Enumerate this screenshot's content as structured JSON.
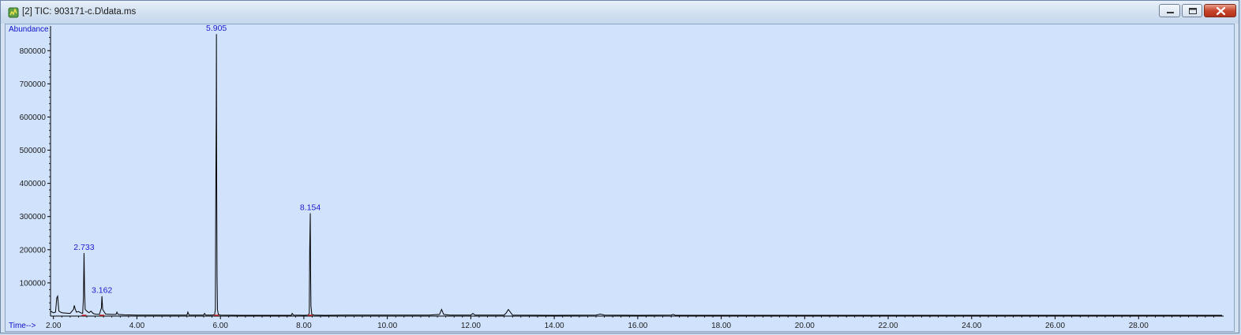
{
  "window": {
    "title": "[2] TIC: 903171-c.D\\data.ms",
    "icon": "chromatogram-app-icon",
    "controls": [
      "minimize-icon",
      "maximize-icon",
      "close-icon"
    ]
  },
  "chart_data": {
    "type": "line",
    "title": "",
    "xlabel": "Time-->",
    "ylabel": "Abundance",
    "xlim": [
      1.93,
      30.0
    ],
    "ylim": [
      0,
      860000
    ],
    "x_ticks": [
      2.0,
      4.0,
      6.0,
      8.0,
      10.0,
      12.0,
      14.0,
      16.0,
      18.0,
      20.0,
      22.0,
      24.0,
      26.0,
      28.0
    ],
    "x_tick_labels": [
      "2.00",
      "4.00",
      "6.00",
      "8.00",
      "10.00",
      "12.00",
      "14.00",
      "16.00",
      "18.00",
      "20.00",
      "22.00",
      "24.00",
      "26.00",
      "28.00"
    ],
    "y_ticks": [
      100000,
      200000,
      300000,
      400000,
      500000,
      600000,
      700000,
      800000
    ],
    "y_tick_labels": [
      "100000",
      "200000",
      "300000",
      "400000",
      "500000",
      "600000",
      "700000",
      "800000"
    ],
    "grid": false,
    "line_color": "#000000",
    "label_color": "#1a1ad0",
    "peak_labels": [
      {
        "x": 2.733,
        "y": 190000,
        "text": "2.733"
      },
      {
        "x": 3.162,
        "y": 60000,
        "text": "3.162"
      },
      {
        "x": 5.905,
        "y": 850000,
        "text": "5.905"
      },
      {
        "x": 8.154,
        "y": 310000,
        "text": "8.154"
      }
    ],
    "series": [
      {
        "x": [
          1.93,
          2.0,
          2.05,
          2.08,
          2.1,
          2.13,
          2.2,
          2.3,
          2.4,
          2.48,
          2.5,
          2.52,
          2.55,
          2.6,
          2.65,
          2.7,
          2.72,
          2.733,
          2.745,
          2.76,
          2.8,
          2.85,
          2.9,
          2.95,
          3.0,
          3.1,
          3.15,
          3.162,
          3.18,
          3.25,
          3.4,
          3.5,
          3.52,
          3.55,
          3.7,
          4.0,
          4.5,
          5.0,
          5.2,
          5.22,
          5.25,
          5.5,
          5.6,
          5.62,
          5.65,
          5.8,
          5.86,
          5.88,
          5.89,
          5.9,
          5.905,
          5.91,
          5.92,
          5.93,
          5.95,
          6.0,
          6.5,
          7.0,
          7.5,
          7.7,
          7.72,
          7.75,
          8.0,
          8.1,
          8.13,
          8.14,
          8.154,
          8.16,
          8.17,
          8.19,
          8.25,
          8.5,
          9.0,
          10.0,
          11.0,
          11.25,
          11.3,
          11.35,
          11.5,
          12.0,
          12.05,
          12.1,
          12.5,
          12.8,
          12.85,
          12.9,
          13.0,
          14.0,
          15.0,
          15.1,
          15.2,
          16.0,
          16.8,
          16.85,
          16.9,
          18.0,
          20.0,
          22.0,
          24.0,
          26.0,
          28.0,
          30.0
        ],
        "y": [
          15000,
          10000,
          12000,
          55000,
          60000,
          15000,
          10000,
          9000,
          8000,
          20000,
          32000,
          22000,
          12000,
          14000,
          10000,
          8000,
          60000,
          190000,
          80000,
          20000,
          15000,
          10000,
          15000,
          8000,
          6000,
          5000,
          25000,
          60000,
          20000,
          6000,
          5000,
          5000,
          12000,
          5000,
          4000,
          3000,
          3000,
          3000,
          3000,
          12000,
          3000,
          3000,
          3000,
          8000,
          3000,
          3000,
          4000,
          20000,
          380000,
          600000,
          850000,
          460000,
          120000,
          20000,
          5000,
          3000,
          2500,
          2500,
          2500,
          2500,
          8000,
          3000,
          2500,
          3000,
          8000,
          200000,
          310000,
          150000,
          30000,
          5000,
          3000,
          2500,
          3000,
          3000,
          3000,
          5000,
          20000,
          5000,
          3000,
          3000,
          8000,
          3000,
          3000,
          3000,
          10000,
          20000,
          3000,
          2500,
          3000,
          6000,
          3000,
          2500,
          3000,
          5000,
          2500,
          2500,
          2500,
          2500,
          2500,
          2500,
          2500,
          2500
        ]
      }
    ]
  }
}
